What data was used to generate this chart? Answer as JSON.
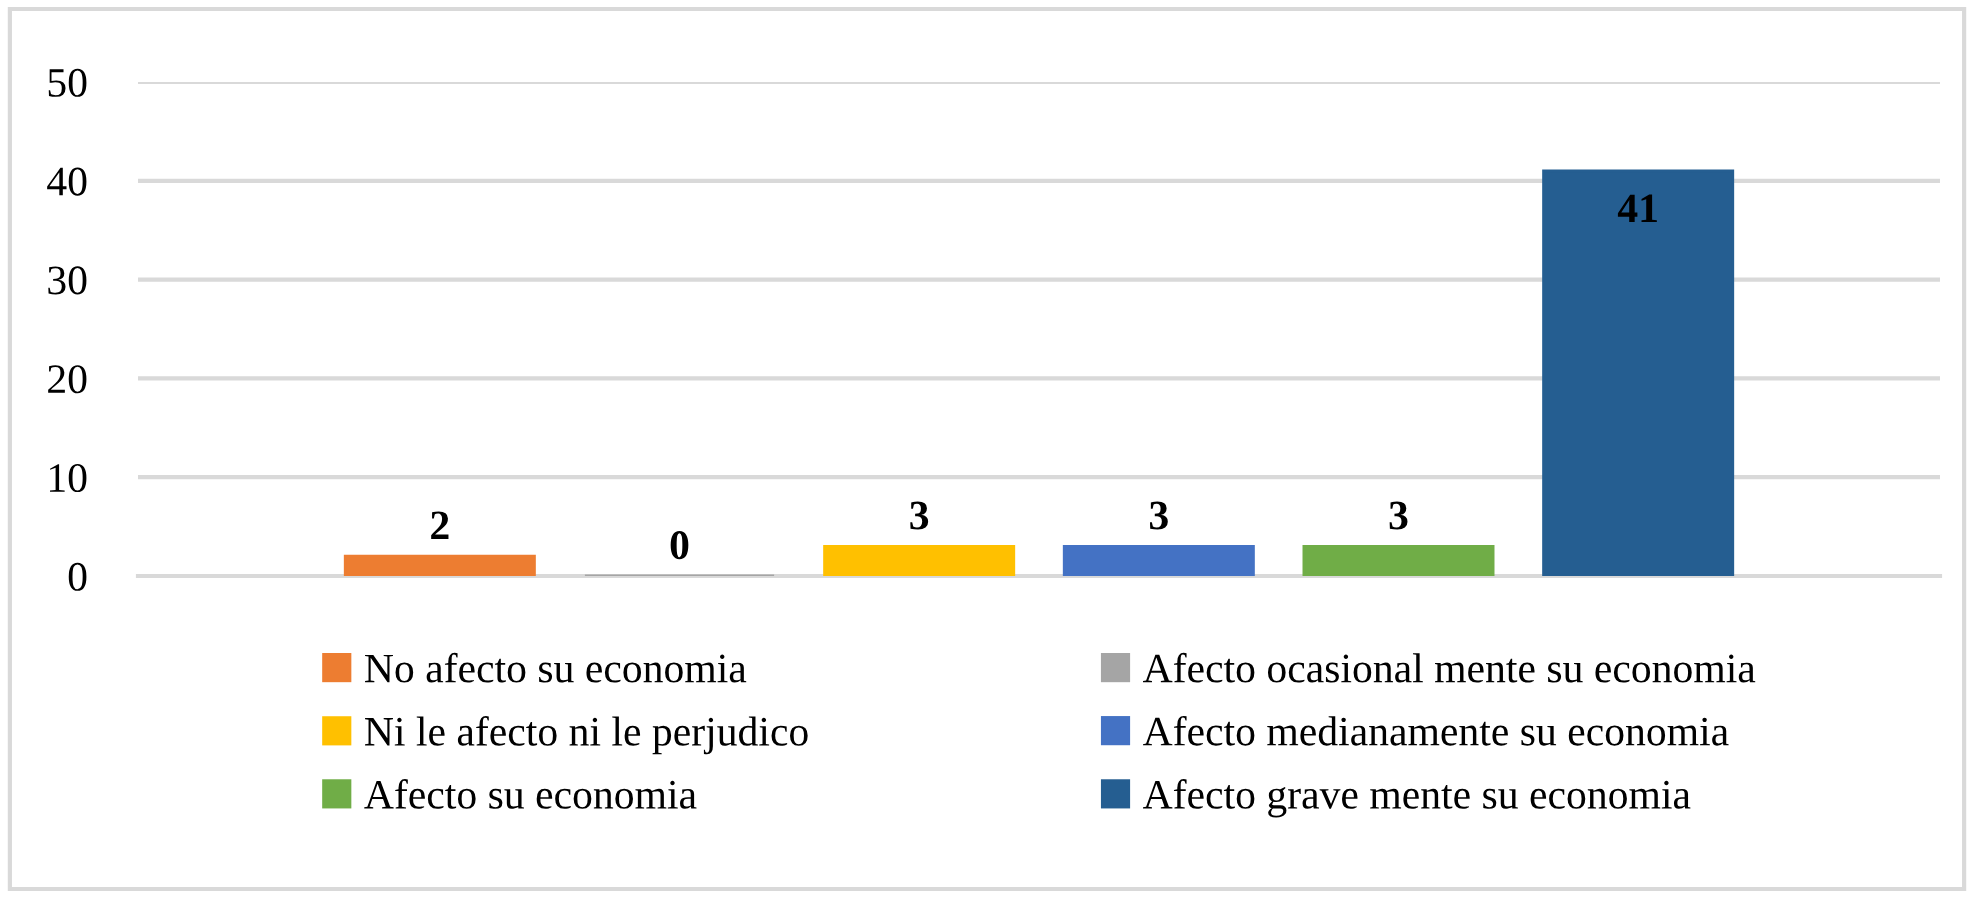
{
  "chart_data": {
    "type": "bar",
    "categories": [
      null
    ],
    "series": [
      {
        "name": "No afecto su economia",
        "color": "#ed7d31",
        "values": [
          2
        ]
      },
      {
        "name": "Afecto ocasional mente su economia",
        "color": "#a5a5a5",
        "values": [
          0
        ]
      },
      {
        "name": "Ni le afecto ni le perjudico",
        "color": "#ffc000",
        "values": [
          3
        ]
      },
      {
        "name": "Afecto medianamente su economia",
        "color": "#4472c4",
        "values": [
          3
        ]
      },
      {
        "name": "Afecto su economia",
        "color": "#70ad47",
        "values": [
          3
        ]
      },
      {
        "name": "Afecto grave mente su economia",
        "color": "#255e91",
        "values": [
          41
        ]
      }
    ],
    "ylim": [
      0,
      50
    ],
    "yticks": [
      0,
      10,
      20,
      30,
      40,
      50
    ],
    "grid": "y",
    "legend": "bottom",
    "data_labels": true
  }
}
